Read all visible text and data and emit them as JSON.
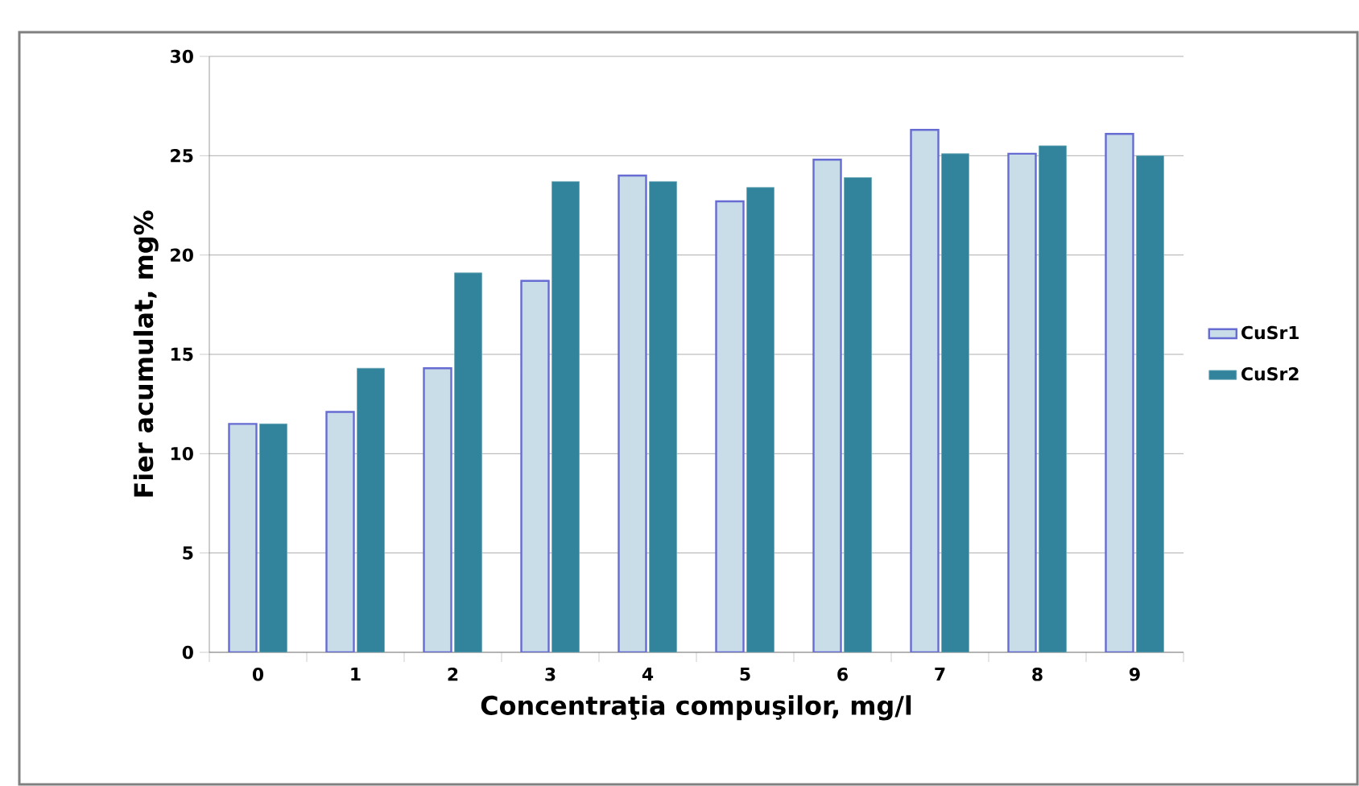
{
  "chart_data": {
    "type": "bar",
    "xlabel": "Concentraţia compuşilor, mg/l",
    "ylabel": "Fier acumulat, mg%",
    "categories": [
      "0",
      "1",
      "2",
      "3",
      "4",
      "5",
      "6",
      "7",
      "8",
      "9"
    ],
    "series": [
      {
        "name": "CuSr1",
        "color": "#c9dde8",
        "values": [
          11.5,
          12.1,
          14.3,
          18.7,
          24.0,
          22.7,
          24.8,
          26.3,
          25.1,
          26.1
        ]
      },
      {
        "name": "CuSr2",
        "color": "#31849b",
        "values": [
          11.5,
          14.3,
          19.1,
          23.7,
          23.7,
          23.4,
          23.9,
          25.1,
          25.5,
          25.0
        ]
      }
    ],
    "ylim": [
      0,
      30
    ],
    "yticks": [
      0,
      5,
      10,
      15,
      20,
      25,
      30
    ],
    "grid": "y",
    "legend": "right"
  }
}
